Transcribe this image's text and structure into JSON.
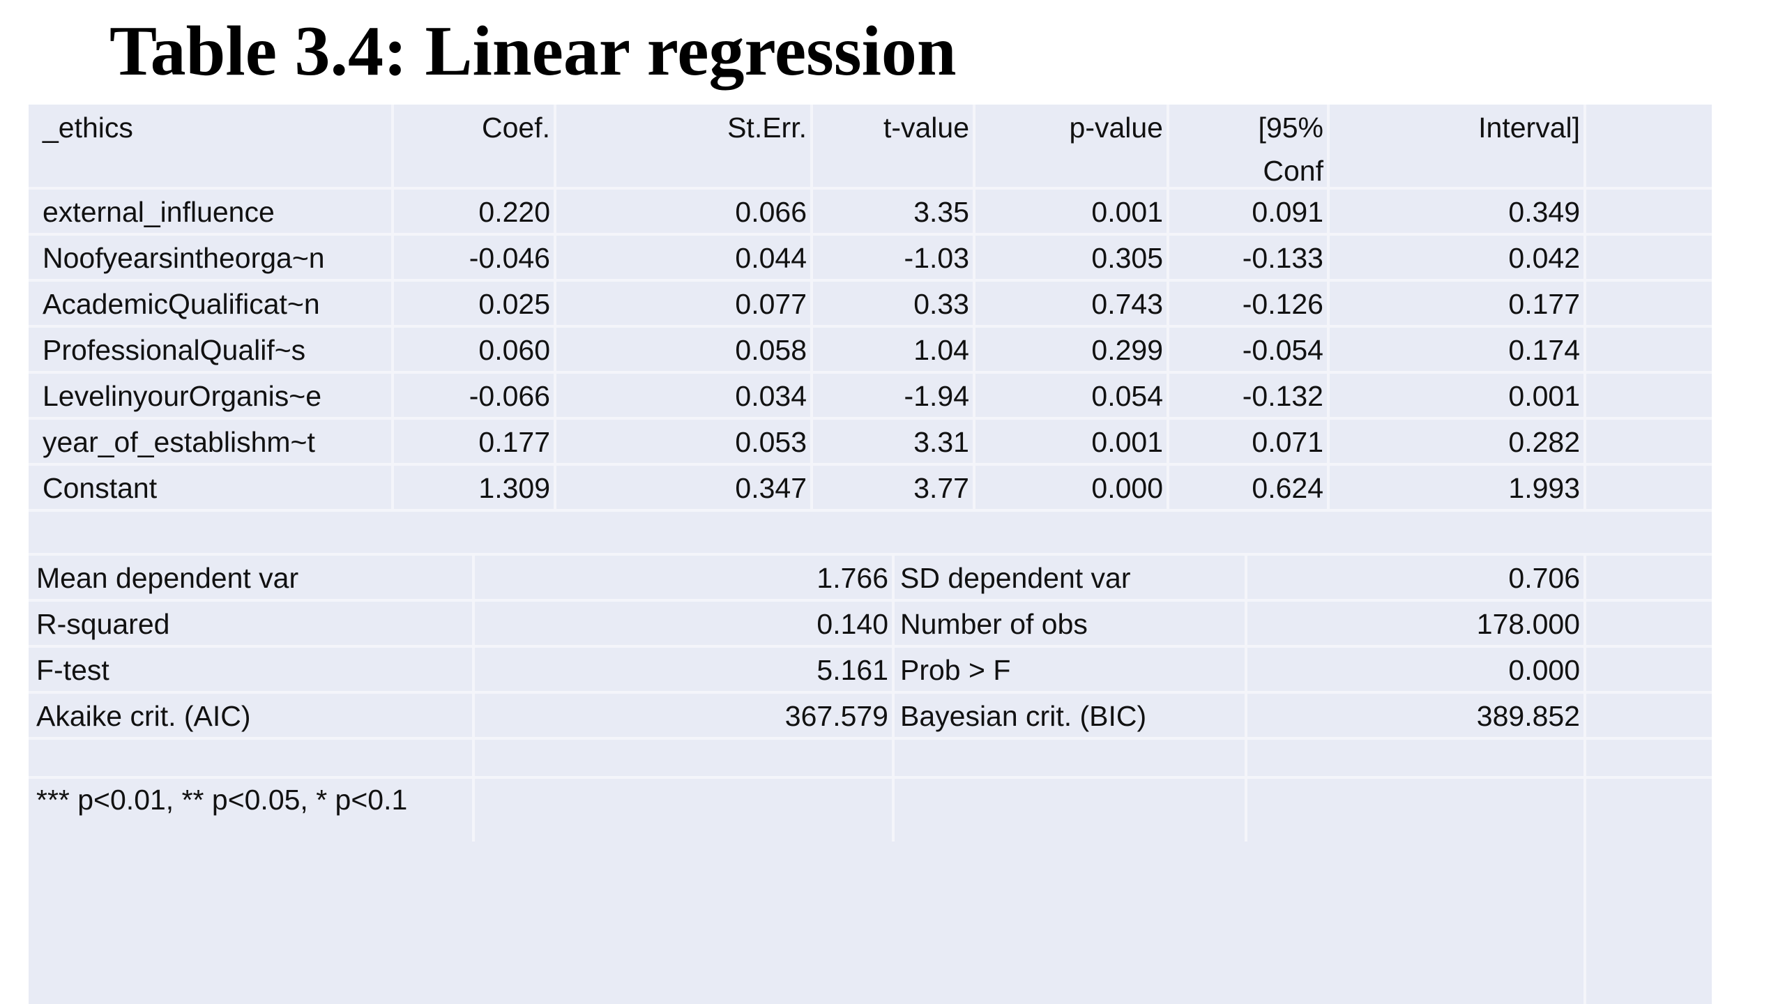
{
  "title": "Table 3.4: Linear regression",
  "coef_table": {
    "headers": {
      "variable": "_ethics",
      "coef": "Coef.",
      "se": "St.Err.",
      "t": "t-value",
      "p": "p-value",
      "ci_low_line1": "[95%",
      "ci_low_line2": "Conf",
      "ci_high": "Interval]"
    },
    "rows": [
      {
        "variable": "external_influence",
        "coef": "0.220",
        "se": "0.066",
        "t": "3.35",
        "p": "0.001",
        "ci_low": "0.091",
        "ci_high": "0.349"
      },
      {
        "variable": "Noofyearsintheorga~n",
        "coef": "-0.046",
        "se": "0.044",
        "t": "-1.03",
        "p": "0.305",
        "ci_low": "-0.133",
        "ci_high": "0.042"
      },
      {
        "variable": "AcademicQualificat~n",
        "coef": "0.025",
        "se": "0.077",
        "t": "0.33",
        "p": "0.743",
        "ci_low": "-0.126",
        "ci_high": "0.177"
      },
      {
        "variable": "ProfessionalQualif~s",
        "coef": "0.060",
        "se": "0.058",
        "t": "1.04",
        "p": "0.299",
        "ci_low": "-0.054",
        "ci_high": "0.174"
      },
      {
        "variable": "LevelinyourOrganis~e",
        "coef": "-0.066",
        "se": "0.034",
        "t": "-1.94",
        "p": "0.054",
        "ci_low": "-0.132",
        "ci_high": "0.001"
      },
      {
        "variable": "year_of_establishm~t",
        "coef": "0.177",
        "se": "0.053",
        "t": "3.31",
        "p": "0.001",
        "ci_low": "0.071",
        "ci_high": "0.282"
      },
      {
        "variable": "Constant",
        "coef": "1.309",
        "se": "0.347",
        "t": "3.77",
        "p": "0.000",
        "ci_low": "0.624",
        "ci_high": "1.993"
      }
    ]
  },
  "stats_table": {
    "rows": [
      {
        "label_left": "Mean dependent var",
        "value_left": "1.766",
        "label_right": "SD dependent var",
        "value_right": "0.706"
      },
      {
        "label_left": "R-squared",
        "value_left": "0.140",
        "label_right": "Number of obs",
        "value_right": "178.000"
      },
      {
        "label_left": "F-test",
        "value_left": "5.161",
        "label_right": "Prob > F",
        "value_right": "0.000"
      },
      {
        "label_left": "Akaike crit. (AIC)",
        "value_left": "367.579",
        "label_right": "Bayesian crit. (BIC)",
        "value_right": "389.852"
      }
    ]
  },
  "footnote": "*** p<0.01, ** p<0.05, * p<0.1",
  "colors": {
    "table_fill": "#e8ebf5",
    "grid_line": "#f4f5fa",
    "title_text": "#000000"
  }
}
